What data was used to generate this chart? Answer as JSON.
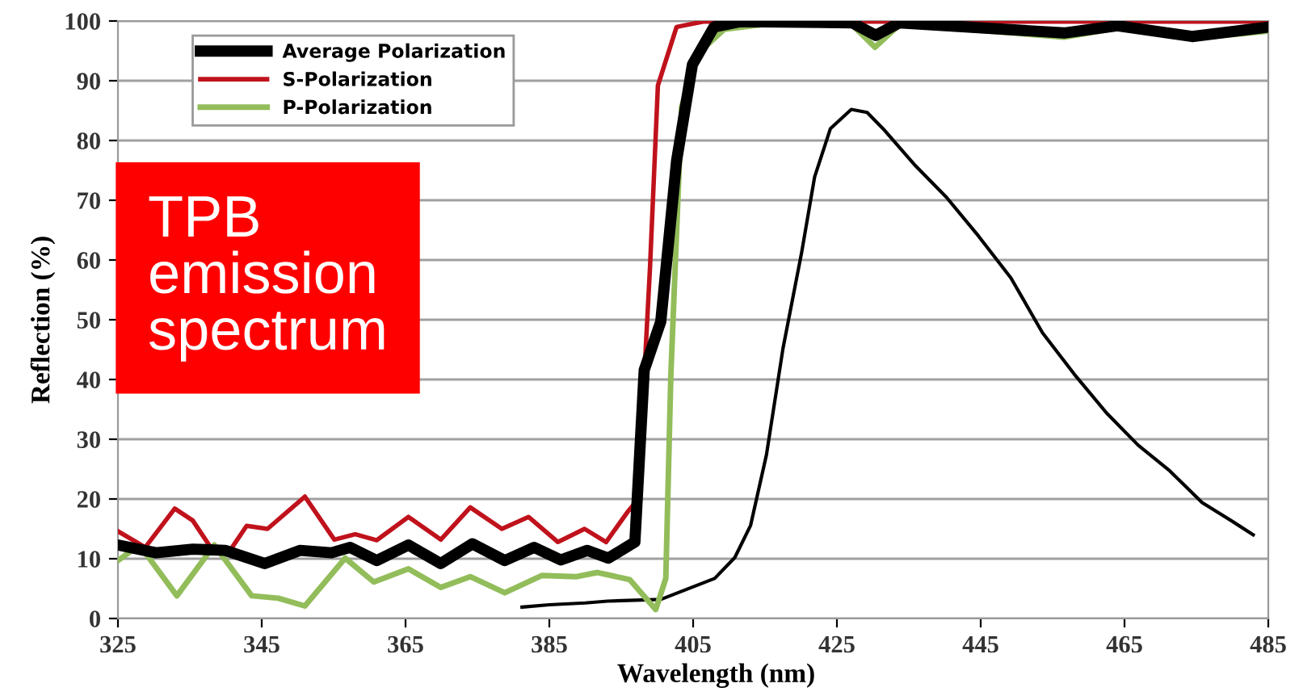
{
  "chart_data": {
    "type": "line",
    "xlabel": "Wavelength (nm)",
    "ylabel": "Reflection (%)",
    "xlim": [
      325,
      485
    ],
    "ylim": [
      0,
      100
    ],
    "xticks": [
      325,
      345,
      365,
      385,
      405,
      425,
      445,
      465,
      485
    ],
    "yticks": [
      0,
      10,
      20,
      30,
      40,
      50,
      60,
      70,
      80,
      90,
      100
    ],
    "grid": "y",
    "legend": "top left",
    "annotations": [
      "TPB emission spectrum"
    ],
    "series": [
      {
        "name": "Average Polarization",
        "color": "#000000",
        "x": [
          325,
          330.3,
          335.4,
          339.9,
          345.4,
          350.3,
          354.7,
          357.3,
          361,
          365.4,
          369.9,
          374.3,
          378.8,
          382.9,
          386.6,
          390.3,
          393.2,
          396.9,
          398.2,
          400.5,
          402.7,
          404.9,
          407.9,
          411.6,
          427.1,
          430.4,
          433.7,
          456.6,
          464,
          474.4,
          485
        ],
        "values": [
          12.3,
          11,
          11.6,
          11.4,
          9.2,
          11.4,
          11,
          11.9,
          9.7,
          12.3,
          9.2,
          12.5,
          9.7,
          11.9,
          9.8,
          11.4,
          10.1,
          12.8,
          41.6,
          49.7,
          76.6,
          92.7,
          99,
          99.9,
          99.7,
          97.6,
          99.7,
          98,
          99.2,
          97.4,
          99
        ]
      },
      {
        "name": "S-Polarization",
        "color": "#c0121c",
        "x": [
          325,
          328.8,
          332.9,
          335.4,
          338.4,
          340.6,
          342.9,
          345.8,
          351,
          355.1,
          358,
          361,
          365.4,
          369.9,
          374,
          378.4,
          382.1,
          386.2,
          389.9,
          392.9,
          395.8,
          397.3,
          399,
          400.1,
          402.7,
          406.4,
          485
        ],
        "values": [
          14.6,
          11.9,
          18.4,
          16.4,
          11,
          11.4,
          15.5,
          15,
          20.4,
          13.2,
          14.1,
          13.1,
          17,
          13.2,
          18.6,
          15,
          17,
          12.8,
          15,
          12.8,
          17.7,
          19.9,
          58.7,
          89.2,
          99,
          99.9,
          99.9
        ]
      },
      {
        "name": "P-Polarization",
        "color": "#92bd5a",
        "x": [
          325,
          328,
          333.2,
          338.4,
          343.6,
          347.3,
          351,
          356.6,
          360.6,
          365.4,
          369.9,
          374,
          378.8,
          384,
          388.8,
          391.7,
          396.2,
          399.8,
          401.2,
          401.9,
          403.4,
          405.6,
          409.3,
          415.2,
          427,
          430.3,
          433.8,
          456.6,
          464,
          474.4,
          485
        ],
        "values": [
          9.7,
          12.3,
          3.8,
          12.3,
          3.8,
          3.4,
          2.1,
          10.1,
          6.1,
          8.3,
          5.2,
          7,
          4.3,
          7.2,
          7,
          7.7,
          6.5,
          1.5,
          6.7,
          40.7,
          85.6,
          94.5,
          98.6,
          99.5,
          99.5,
          95.6,
          99.5,
          97.3,
          98.8,
          97.1,
          98.3
        ]
      },
      {
        "color": "#000000",
        "x": [
          381.2,
          385,
          390,
          393.1,
          400.5,
          408,
          410.8,
          413,
          415.2,
          417.5,
          420.1,
          421.9,
          424.1,
          427,
          429.2,
          431.4,
          435.9,
          440.3,
          444.7,
          449.2,
          453.6,
          458,
          462.5,
          466.9,
          471.3,
          475.8,
          480.2,
          482.9
        ],
        "values": [
          1.9,
          2.3,
          2.6,
          2.9,
          3.2,
          6.7,
          10.2,
          15.6,
          27.4,
          45.2,
          61.3,
          73.9,
          82,
          85.2,
          84.7,
          82,
          75.8,
          70.4,
          64,
          57,
          47.8,
          40.9,
          34.4,
          29,
          24.7,
          19.4,
          16.1,
          14
        ]
      }
    ]
  }
}
